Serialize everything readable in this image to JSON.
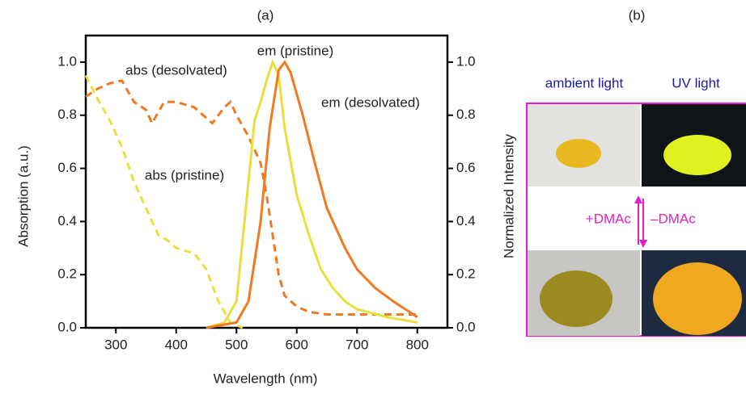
{
  "chart_data": {
    "type": "line",
    "title": "(a)",
    "x_label": "Wavelength (nm)",
    "y_label": "Absorption (a.u.)",
    "y2_label": "Normalized Intensity",
    "xlim": [
      250,
      850
    ],
    "xticks": [
      300,
      400,
      500,
      600,
      700,
      800
    ],
    "ylim": [
      0,
      1.1
    ],
    "yticks": [
      {
        "value": 0,
        "label": "0.0"
      },
      {
        "value": 0.2,
        "label": "0.2"
      },
      {
        "value": 0.4,
        "label": "0.4"
      },
      {
        "value": 0.6,
        "label": "0.6"
      },
      {
        "value": 0.8,
        "label": "0.8"
      },
      {
        "value": 1,
        "label": "1.0"
      }
    ],
    "y2lim": [
      0,
      1.1
    ],
    "y2ticks": [
      {
        "value": 0,
        "label": "0.0"
      },
      {
        "value": 0.2,
        "label": "0.2"
      },
      {
        "value": 0.4,
        "label": "0.4"
      },
      {
        "value": 0.6,
        "label": "0.6"
      },
      {
        "value": 0.8,
        "label": "0.8"
      },
      {
        "value": 1,
        "label": "1.0"
      }
    ],
    "series": [
      {
        "name": "abs (pristine)",
        "color": "#e9e03e",
        "line_style": "dashed",
        "x": [
          250,
          270,
          290,
          310,
          330,
          350,
          370,
          385,
          400,
          430,
          450,
          470,
          490,
          510
        ],
        "values": [
          0.95,
          0.86,
          0.78,
          0.68,
          0.55,
          0.45,
          0.35,
          0.33,
          0.3,
          0.28,
          0.22,
          0.1,
          0.02,
          0
        ]
      },
      {
        "name": "abs (desolvated)",
        "color": "#f07a22",
        "line_style": "dashed",
        "x": [
          250,
          270,
          290,
          310,
          330,
          350,
          360,
          380,
          400,
          430,
          460,
          480,
          490,
          500,
          520,
          540,
          550,
          560,
          570,
          580,
          600,
          620,
          650,
          700,
          750,
          800
        ],
        "values": [
          0.87,
          0.9,
          0.92,
          0.93,
          0.85,
          0.82,
          0.77,
          0.85,
          0.85,
          0.83,
          0.77,
          0.83,
          0.85,
          0.8,
          0.72,
          0.62,
          0.5,
          0.35,
          0.2,
          0.12,
          0.08,
          0.06,
          0.05,
          0.05,
          0.05,
          0.05
        ]
      },
      {
        "name": "em (pristine)",
        "color": "#e9e03e",
        "line_style": "solid",
        "axis": "y2",
        "x": [
          450,
          480,
          500,
          520,
          530,
          540,
          550,
          560,
          570,
          580,
          600,
          620,
          640,
          660,
          680,
          700,
          750,
          800
        ],
        "values": [
          0,
          0.02,
          0.1,
          0.55,
          0.78,
          0.85,
          0.93,
          1,
          0.95,
          0.75,
          0.5,
          0.35,
          0.22,
          0.15,
          0.1,
          0.07,
          0.04,
          0.02
        ]
      },
      {
        "name": "em (desolvated)",
        "color": "#f07a22",
        "line_style": "solid",
        "axis": "y2",
        "x": [
          450,
          500,
          520,
          540,
          555,
          570,
          580,
          590,
          610,
          630,
          650,
          680,
          700,
          730,
          760,
          800
        ],
        "values": [
          0,
          0.02,
          0.1,
          0.4,
          0.75,
          0.97,
          1,
          0.96,
          0.8,
          0.62,
          0.45,
          0.3,
          0.22,
          0.15,
          0.1,
          0.04
        ]
      }
    ]
  },
  "panel_b": {
    "title": "(b)",
    "col_left": "ambient light",
    "col_right": "UV light",
    "add": "+DMAc",
    "remove": "–DMAc"
  }
}
